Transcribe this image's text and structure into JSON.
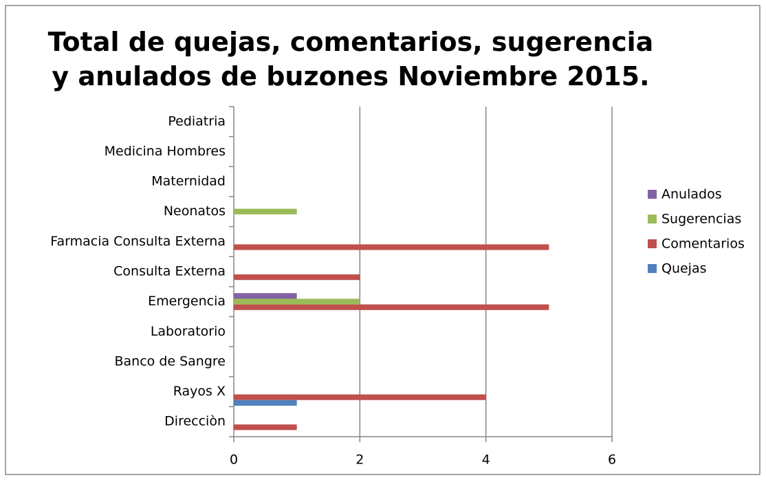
{
  "chart_data": {
    "type": "bar",
    "orientation": "horizontal",
    "title": "Total de quejas, comentarios, sugerencia y anulados de buzones Noviembre 2015.",
    "categories": [
      "Direcciòn",
      "Rayos X",
      "Banco de Sangre",
      "Laboratorio",
      "Emergencia",
      "Consulta Externa",
      "Farmacia Consulta Externa",
      "Neonatos",
      "Maternidad",
      "Medicina Hombres",
      "Pediatria"
    ],
    "series": [
      {
        "name": "Quejas",
        "color": "#4f81bd",
        "values": [
          0,
          1,
          0,
          0,
          0,
          0,
          0,
          0,
          0,
          0,
          0
        ]
      },
      {
        "name": "Comentarios",
        "color": "#c0504d",
        "values": [
          1,
          4,
          0,
          0,
          5,
          2,
          5,
          0,
          0,
          0,
          0
        ]
      },
      {
        "name": "Sugerencias",
        "color": "#9bbb59",
        "values": [
          0,
          0,
          0,
          0,
          2,
          0,
          0,
          1,
          0,
          0,
          0
        ]
      },
      {
        "name": "Anulados",
        "color": "#8064a2",
        "values": [
          0,
          0,
          0,
          0,
          1,
          0,
          0,
          0,
          0,
          0,
          0
        ]
      }
    ],
    "xlim": [
      0,
      6
    ],
    "xticks": [
      0,
      2,
      4,
      6
    ],
    "grid": true,
    "legend": "right"
  }
}
